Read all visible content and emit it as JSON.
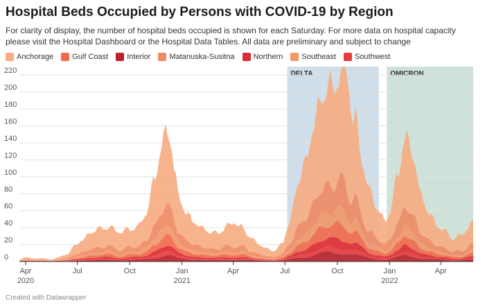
{
  "title": "Hospital Beds Occupied by Persons with COVID-19 by Region",
  "subtitle": "For clarity of display, the number of hospital beds occupied is shown for each Saturday. For more data on hospital capacity please visit the Hospital Dashboard or the Hospital Data Tables. All data are preliminary and subject to change",
  "footer": "Created with Datawrapper",
  "chart_data": {
    "type": "area",
    "stacked": true,
    "title": "Hospital Beds Occupied by Persons with COVID-19 by Region",
    "xlabel": "",
    "ylabel": "",
    "x_range": [
      "2020-03-21",
      "2022-05-28"
    ],
    "ylim": [
      0,
      230
    ],
    "y_ticks": [
      0,
      20,
      40,
      60,
      80,
      100,
      120,
      140,
      160,
      180,
      200,
      220
    ],
    "x_ticks": [
      {
        "date": "2020-04-01",
        "label": "Apr",
        "year": "2020"
      },
      {
        "date": "2020-07-01",
        "label": "Jul",
        "year": ""
      },
      {
        "date": "2020-10-01",
        "label": "Oct",
        "year": ""
      },
      {
        "date": "2021-01-01",
        "label": "Jan",
        "year": "2021"
      },
      {
        "date": "2021-04-01",
        "label": "Apr",
        "year": ""
      },
      {
        "date": "2021-07-01",
        "label": "Jul",
        "year": ""
      },
      {
        "date": "2021-10-01",
        "label": "Oct",
        "year": ""
      },
      {
        "date": "2022-01-01",
        "label": "Jan",
        "year": "2022"
      },
      {
        "date": "2022-04-01",
        "label": "Apr",
        "year": ""
      }
    ],
    "grid": true,
    "legend_position": "top-left",
    "annotations": [
      {
        "label": "DELTA",
        "start": "2021-07-05",
        "end": "2021-12-13",
        "color": "#c7d8e4"
      },
      {
        "label": "OMICRON",
        "start": "2021-12-27",
        "end": "2022-05-28",
        "color": "#c5ddd3"
      }
    ],
    "series": [
      {
        "name": "Anchorage",
        "color": "#f6ad82"
      },
      {
        "name": "Gulf Coast",
        "color": "#f16a4c"
      },
      {
        "name": "Interior",
        "color": "#b8232c"
      },
      {
        "name": "Matanuska-Susitna",
        "color": "#ef8a64"
      },
      {
        "name": "Northern",
        "color": "#dd2c33"
      },
      {
        "name": "Southeast",
        "color": "#f1986a"
      },
      {
        "name": "Southwest",
        "color": "#e63d3d"
      }
    ],
    "stack_order": [
      "Interior",
      "Southwest",
      "Northern",
      "Gulf Coast",
      "Southeast",
      "Matanuska-Susitna",
      "Anchorage"
    ],
    "totals": [
      [
        "2020-03-21",
        2
      ],
      [
        "2020-04-04",
        5
      ],
      [
        "2020-04-18",
        3
      ],
      [
        "2020-05-02",
        4
      ],
      [
        "2020-05-16",
        2
      ],
      [
        "2020-05-30",
        5
      ],
      [
        "2020-06-13",
        8
      ],
      [
        "2020-06-27",
        18
      ],
      [
        "2020-07-11",
        25
      ],
      [
        "2020-07-25",
        33
      ],
      [
        "2020-08-08",
        37
      ],
      [
        "2020-08-22",
        38
      ],
      [
        "2020-09-05",
        35
      ],
      [
        "2020-09-19",
        33
      ],
      [
        "2020-10-03",
        36
      ],
      [
        "2020-10-17",
        40
      ],
      [
        "2020-10-31",
        55
      ],
      [
        "2020-11-14",
        95
      ],
      [
        "2020-11-28",
        135
      ],
      [
        "2020-12-05",
        150
      ],
      [
        "2020-12-12",
        140
      ],
      [
        "2020-12-19",
        105
      ],
      [
        "2020-12-26",
        75
      ],
      [
        "2021-01-09",
        55
      ],
      [
        "2021-01-23",
        45
      ],
      [
        "2021-02-06",
        38
      ],
      [
        "2021-02-20",
        33
      ],
      [
        "2021-03-06",
        32
      ],
      [
        "2021-03-20",
        38
      ],
      [
        "2021-04-03",
        45
      ],
      [
        "2021-04-17",
        36
      ],
      [
        "2021-05-01",
        28
      ],
      [
        "2021-05-15",
        20
      ],
      [
        "2021-05-29",
        15
      ],
      [
        "2021-06-12",
        12
      ],
      [
        "2021-06-26",
        20
      ],
      [
        "2021-07-10",
        45
      ],
      [
        "2021-07-24",
        90
      ],
      [
        "2021-08-07",
        115
      ],
      [
        "2021-08-21",
        155
      ],
      [
        "2021-09-04",
        185
      ],
      [
        "2021-09-18",
        200
      ],
      [
        "2021-09-25",
        195
      ],
      [
        "2021-10-02",
        205
      ],
      [
        "2021-10-09",
        210
      ],
      [
        "2021-10-16",
        225
      ],
      [
        "2021-10-30",
        160
      ],
      [
        "2021-11-13",
        115
      ],
      [
        "2021-11-27",
        80
      ],
      [
        "2021-12-11",
        60
      ],
      [
        "2021-12-25",
        45
      ],
      [
        "2022-01-01",
        55
      ],
      [
        "2022-01-15",
        95
      ],
      [
        "2022-01-29",
        145
      ],
      [
        "2022-02-12",
        120
      ],
      [
        "2022-02-26",
        75
      ],
      [
        "2022-03-12",
        55
      ],
      [
        "2022-03-26",
        40
      ],
      [
        "2022-04-09",
        35
      ],
      [
        "2022-04-23",
        25
      ],
      [
        "2022-05-07",
        30
      ],
      [
        "2022-05-21",
        38
      ],
      [
        "2022-05-28",
        40
      ]
    ],
    "region_shares": {
      "Anchorage": 0.55,
      "Matanuska-Susitna": 0.16,
      "Southeast": 0.08,
      "Gulf Coast": 0.08,
      "Northern": 0.05,
      "Southwest": 0.03,
      "Interior": 0.05
    }
  }
}
